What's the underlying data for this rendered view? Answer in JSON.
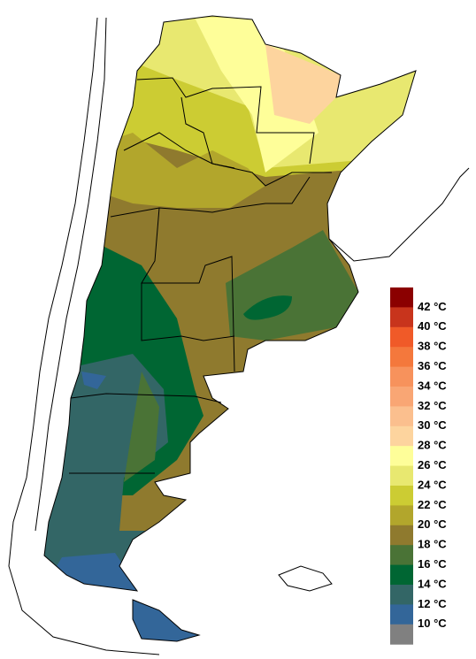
{
  "legend": {
    "labels": [
      "42 °C",
      "40 °C",
      "38 °C",
      "36 °C",
      "34 °C",
      "32 °C",
      "30 °C",
      "28 °C",
      "26 °C",
      "24 °C",
      "22 °C",
      "20 °C",
      "18 °C",
      "16 °C",
      "14 °C",
      "12 °C",
      "10 °C"
    ],
    "colors": [
      "#8b0000",
      "#c8341c",
      "#f05a28",
      "#f4783c",
      "#f7925c",
      "#f9a674",
      "#fbbf8e",
      "#fdd49e",
      "#fefe99",
      "#e8e870",
      "#cccc33",
      "#b2a62c",
      "#8f7a2e",
      "#4a7336",
      "#006633",
      "#336666",
      "#336699",
      "#808080"
    ]
  }
}
